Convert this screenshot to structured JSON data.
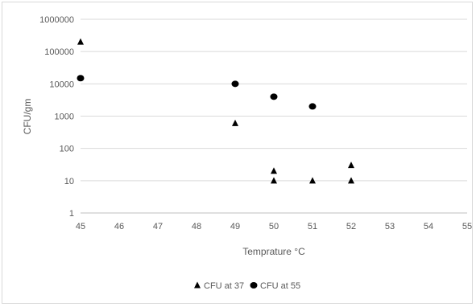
{
  "chart_data": {
    "type": "scatter",
    "title": "",
    "xlabel": "Temprature °C",
    "ylabel": "CFU/gm",
    "xlim": [
      45,
      55
    ],
    "ylim": [
      1,
      1000000
    ],
    "yscale": "log",
    "grid": "horizontal",
    "legend_position": "bottom",
    "x_ticks": [
      "45",
      "46",
      "47",
      "48",
      "49",
      "50",
      "51",
      "52",
      "53",
      "54",
      "55"
    ],
    "y_ticks": [
      "1",
      "10",
      "100",
      "1000",
      "10000",
      "100000",
      "1000000"
    ],
    "series": [
      {
        "name": "CFU at 37",
        "marker": "triangle",
        "color": "#000000",
        "points": [
          [
            45,
            200000
          ],
          [
            49,
            600
          ],
          [
            50,
            20
          ],
          [
            50,
            10
          ],
          [
            51,
            10
          ],
          [
            52,
            30
          ],
          [
            52,
            10
          ]
        ]
      },
      {
        "name": "CFU at 55",
        "marker": "circle",
        "color": "#000000",
        "points": [
          [
            45,
            15000
          ],
          [
            49,
            10000
          ],
          [
            50,
            4000
          ],
          [
            51,
            2000
          ]
        ]
      }
    ]
  }
}
